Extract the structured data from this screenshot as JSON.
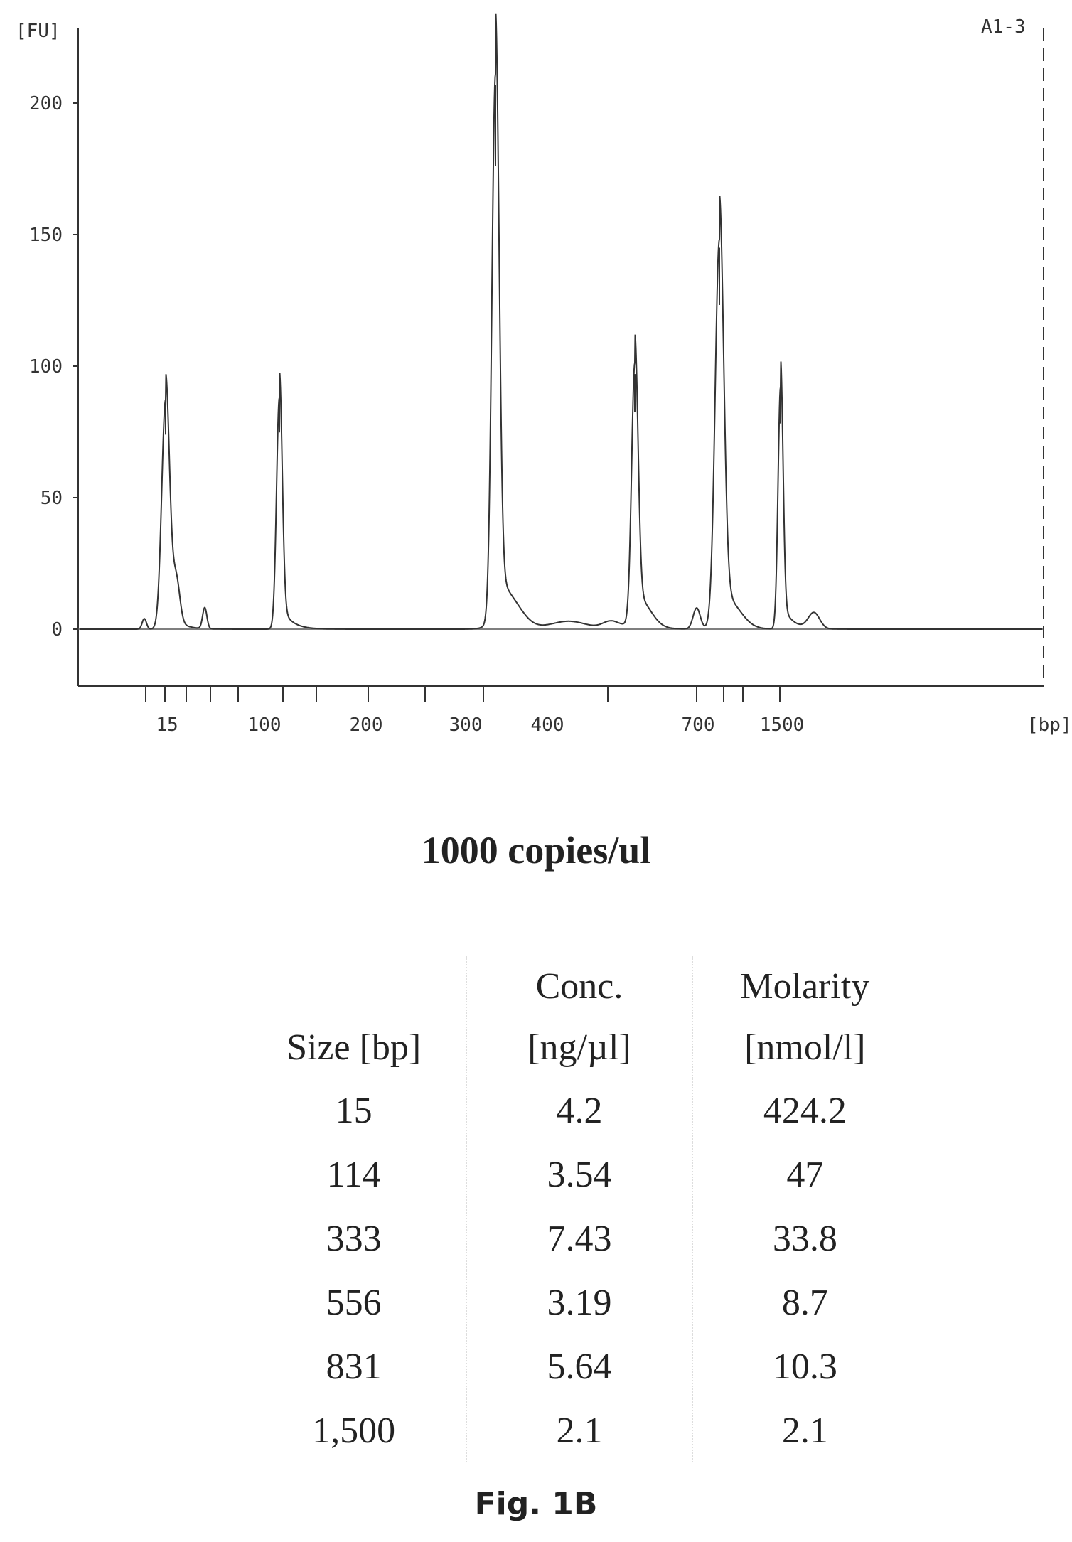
{
  "chart_data": {
    "type": "line",
    "sample_label": "A1-3",
    "ylabel": "[FU]",
    "xlabel": "[bp]",
    "ylim": [
      -20,
      220
    ],
    "y_ticks": [
      0,
      50,
      100,
      150,
      200
    ],
    "x_tick_labels": [
      "15",
      "100",
      "200",
      "300",
      "400",
      "700",
      "1500"
    ],
    "peaks": [
      {
        "size_bp": 15,
        "fu": 87
      },
      {
        "size_bp": 114,
        "fu": 88
      },
      {
        "size_bp": 333,
        "fu": 207
      },
      {
        "size_bp": 556,
        "fu": 97
      },
      {
        "size_bp": 831,
        "fu": 145
      },
      {
        "size_bp": 1500,
        "fu": 92
      }
    ],
    "grid": false
  },
  "heading": "1000 copies/ul",
  "table": {
    "headers": [
      {
        "line1": "",
        "line2": "Size [bp]"
      },
      {
        "line1": "Conc.",
        "line2": "[ng/µl]"
      },
      {
        "line1": "Molarity",
        "line2": "[nmol/l]"
      }
    ],
    "rows": [
      [
        "15",
        "4.2",
        "424.2"
      ],
      [
        "114",
        "3.54",
        "47"
      ],
      [
        "333",
        "7.43",
        "33.8"
      ],
      [
        "556",
        "3.19",
        "8.7"
      ],
      [
        "831",
        "5.64",
        "10.3"
      ],
      [
        "1,500",
        "2.1",
        "2.1"
      ]
    ]
  },
  "caption": "Fig. 1B"
}
